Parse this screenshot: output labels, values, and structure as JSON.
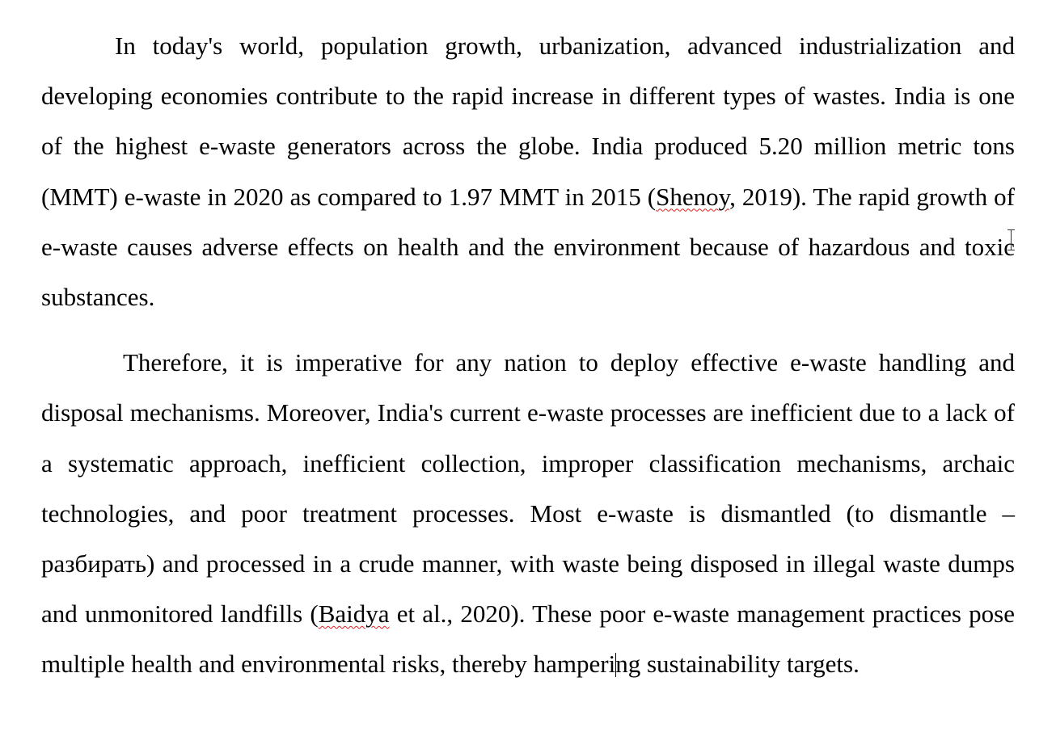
{
  "document": {
    "paragraph_1": {
      "text_1": "In today's world, population growth, urbanization, advanced industrialization and developing economies contribute to the rapid increase in different types of wastes. India is one of the highest e-waste generators across the globe. India produced 5.20 million metric tons (MMT) e-waste in 2020 as compared to 1.97 MMT in 2015 (",
      "citation_shenoy": "Shenoy",
      "text_2": ", 2019). The rapid growth of e-waste causes adverse effects on health and the environment because of hazardous and toxic substances."
    },
    "paragraph_2": {
      "text_1": "Therefore, it is imperative for any nation to deploy effective e-waste handling and disposal mechanisms. Moreover, India's current e-waste processes are inefficient due to a lack of a systematic approach, inefficient collection, improper classification mechanisms, archaic technologies, and poor treatment processes. Most e-waste is dismantled (to dismantle – разбирать) and processed in a crude manner, with waste being disposed in illegal waste dumps and unmonitored landfills (",
      "citation_baidya": "Baidya",
      "text_2": " et al., 2020). These poor e-waste management practices pose multiple health and environmental risks, thereby hamperi",
      "text_3": "ng sustainability targets."
    }
  },
  "cursor": {
    "icon": "text-cursor-ibeam-icon"
  },
  "colors": {
    "text": "#000000",
    "spellcheck_underline": "#e02020",
    "background": "#ffffff"
  }
}
